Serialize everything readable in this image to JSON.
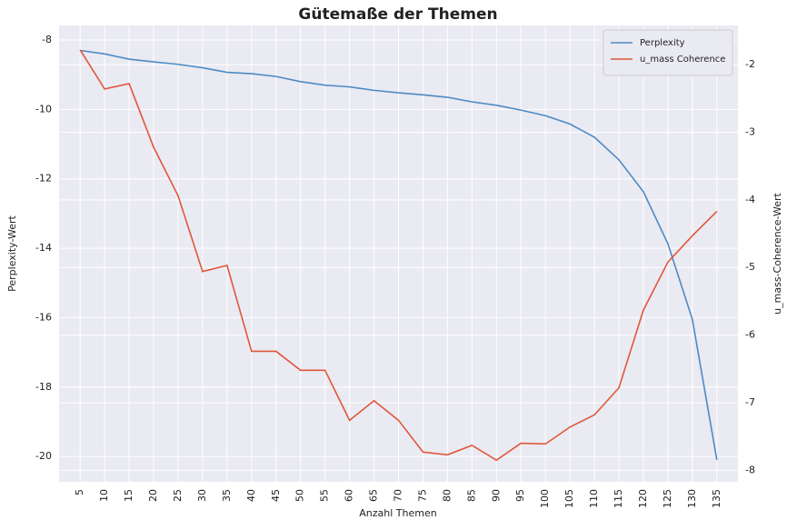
{
  "chart_data": {
    "type": "line",
    "title": "Gütemaße der Themen",
    "x_label": "Anzahl Themen",
    "y_label": "Perplexity-Wert",
    "y2_label": "u_mass-Coherence-Wert",
    "x": [
      5,
      10,
      15,
      20,
      25,
      30,
      35,
      40,
      45,
      50,
      55,
      60,
      65,
      70,
      75,
      80,
      85,
      90,
      95,
      100,
      105,
      110,
      115,
      120,
      125,
      130,
      135
    ],
    "series": [
      {
        "name": "Perplexity",
        "color": "#4c8bc5",
        "axis": "y",
        "values": [
          -8.3,
          -8.4,
          -8.55,
          -8.63,
          -8.7,
          -8.8,
          -8.93,
          -8.97,
          -9.05,
          -9.2,
          -9.3,
          -9.35,
          -9.45,
          -9.52,
          -9.58,
          -9.65,
          -9.78,
          -9.88,
          -10.02,
          -10.18,
          -10.42,
          -10.8,
          -11.45,
          -12.37,
          -13.87,
          -16.05,
          -20.1
        ]
      },
      {
        "name": "u_mass Coherence",
        "color": "#e0573a",
        "axis": "y2",
        "values": [
          -1.78,
          -2.36,
          -2.28,
          -3.22,
          -3.94,
          -5.06,
          -4.97,
          -6.24,
          -6.24,
          -6.52,
          -6.52,
          -7.26,
          -6.97,
          -7.26,
          -7.73,
          -7.77,
          -7.63,
          -7.85,
          -7.6,
          -7.61,
          -7.36,
          -7.18,
          -6.78,
          -5.63,
          -4.92,
          -4.53,
          -4.17
        ]
      }
    ],
    "xlim": [
      0.7,
      139.3
    ],
    "xticks": [
      5,
      10,
      15,
      20,
      25,
      30,
      35,
      40,
      45,
      50,
      55,
      60,
      65,
      70,
      75,
      80,
      85,
      90,
      95,
      100,
      105,
      110,
      115,
      120,
      125,
      130,
      135
    ],
    "ylim": [
      -20.73,
      -7.58
    ],
    "yticks": [
      -20,
      -18,
      -16,
      -14,
      -12,
      -10,
      -8
    ],
    "y2lim": [
      -8.17,
      -1.42
    ],
    "y2ticks": [
      -8,
      -7,
      -6,
      -5,
      -4,
      -3,
      -2
    ],
    "grid": true,
    "legend": "upper right"
  }
}
